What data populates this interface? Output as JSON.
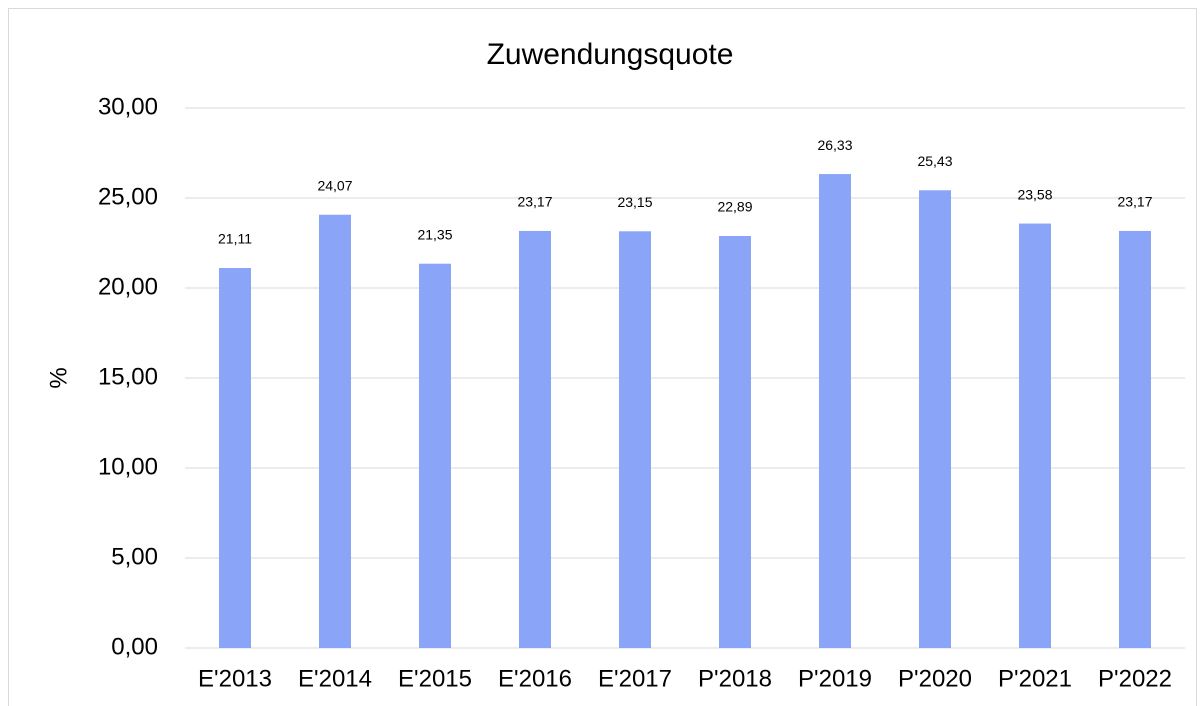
{
  "chart_data": {
    "type": "bar",
    "title": "Zuwendungsquote",
    "y_label": "%",
    "categories": [
      "E'2013",
      "E'2014",
      "E'2015",
      "E'2016",
      "E'2017",
      "P'2018",
      "P'2019",
      "P'2020",
      "P'2021",
      "P'2022"
    ],
    "values": [
      21.11,
      24.07,
      21.35,
      23.17,
      23.15,
      22.89,
      26.33,
      25.43,
      23.58,
      23.17
    ],
    "value_labels": [
      "21,11",
      "24,07",
      "21,35",
      "23,17",
      "23,15",
      "22,89",
      "26,33",
      "25,43",
      "23,58",
      "23,17"
    ],
    "color": "#8aa4f8",
    "ylim": [
      0,
      30
    ],
    "yticks": [
      {
        "value": 0,
        "label": "0,00"
      },
      {
        "value": 5,
        "label": "5,00"
      },
      {
        "value": 10,
        "label": "10,00"
      },
      {
        "value": 15,
        "label": "15,00"
      },
      {
        "value": 20,
        "label": "20,00"
      },
      {
        "value": 25,
        "label": "25,00"
      },
      {
        "value": 30,
        "label": "30,00"
      }
    ],
    "grid": true
  }
}
